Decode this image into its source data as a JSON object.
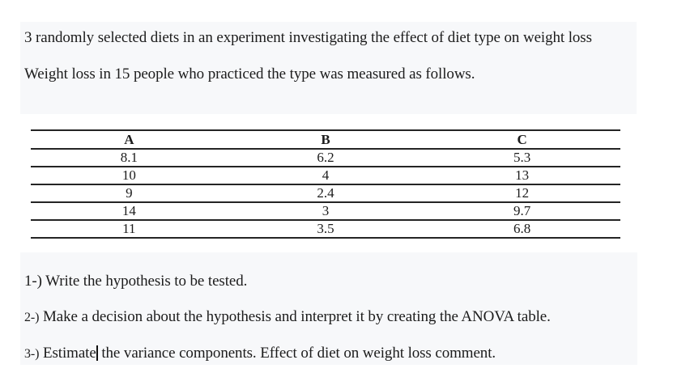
{
  "intro": {
    "line1": "3 randomly selected diets in an experiment investigating the effect of diet type on weight loss",
    "line2": "Weight loss in 15 people who practiced the type was measured as follows."
  },
  "table": {
    "headers": [
      "A",
      "B",
      "C"
    ],
    "rows": [
      [
        "8.1",
        "6.2",
        "5.3"
      ],
      [
        "10",
        "4",
        "13"
      ],
      [
        "9",
        "2.4",
        "12"
      ],
      [
        "14",
        "3",
        "9.7"
      ],
      [
        "11",
        "3.5",
        "6.8"
      ]
    ]
  },
  "questions": [
    {
      "prefix": "1-)",
      "text": " Write the hypothesis to be tested."
    },
    {
      "prefix": "2-)",
      "text": " Make a decision about the hypothesis and interpret it by creating the ANOVA table."
    },
    {
      "prefix": "3-)",
      "text_before": " Estimate",
      "text_after": " the variance components. Effect of diet on weight loss comment."
    }
  ],
  "colors": {
    "page_background": "#ffffff",
    "block_background": "#f7f8fa",
    "text": "#1c1c1c",
    "table_line": "#242424"
  }
}
